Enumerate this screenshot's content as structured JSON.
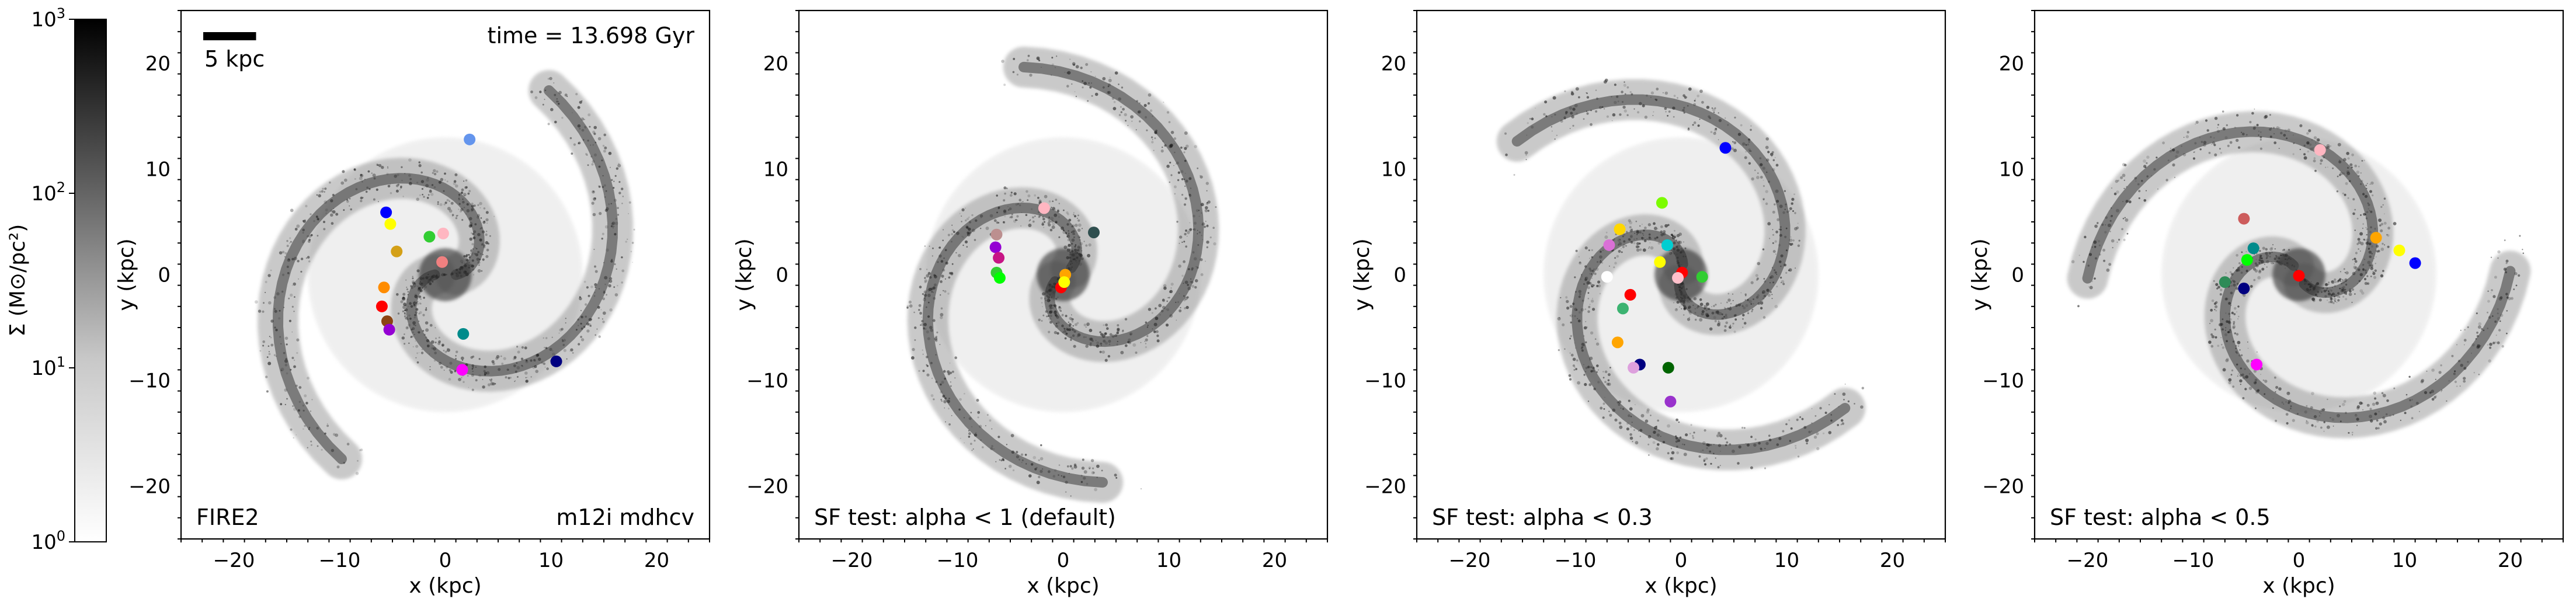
{
  "figure": {
    "colorbar": {
      "label": "Σ (M⊙/pc²)",
      "scale": "log",
      "range": [
        1,
        1000
      ],
      "ticks": [
        {
          "base": "10",
          "exp": "0"
        },
        {
          "base": "10",
          "exp": "1"
        },
        {
          "base": "10",
          "exp": "2"
        },
        {
          "base": "10",
          "exp": "3"
        }
      ],
      "colormap": [
        "#ffffff",
        "#000000"
      ]
    },
    "scale_bar_label": "5 kpc"
  },
  "chart_data": [
    {
      "type": "scatter",
      "title": "",
      "time_label": "time = 13.698 Gyr",
      "label_left": "FIRE2",
      "label_right": "m12i mdhcv",
      "xlabel": "x (kpc)",
      "ylabel": "y (kpc)",
      "xlim": [
        -25,
        25
      ],
      "ylim": [
        -25,
        25
      ],
      "xticks": [
        "−20",
        "−10",
        "0",
        "10",
        "20"
      ],
      "yticks": [
        "−20",
        "−10",
        "0",
        "10",
        "20"
      ],
      "points": [
        {
          "x": 2.3,
          "y": 12.8,
          "color": "#6495ed"
        },
        {
          "x": -5.6,
          "y": 5.9,
          "color": "#0000ff"
        },
        {
          "x": -5.2,
          "y": 4.8,
          "color": "#ffff00"
        },
        {
          "x": -4.6,
          "y": 2.2,
          "color": "#d4a017"
        },
        {
          "x": -1.5,
          "y": 3.6,
          "color": "#32cd32"
        },
        {
          "x": -0.2,
          "y": 3.9,
          "color": "#ffb6c1"
        },
        {
          "x": -0.3,
          "y": 1.2,
          "color": "#f08080"
        },
        {
          "x": -5.8,
          "y": -1.2,
          "color": "#ff8c00"
        },
        {
          "x": -6.0,
          "y": -3.0,
          "color": "#ff0000"
        },
        {
          "x": -5.5,
          "y": -4.4,
          "color": "#8b4513"
        },
        {
          "x": -5.3,
          "y": -5.2,
          "color": "#9400d3"
        },
        {
          "x": 1.7,
          "y": -5.6,
          "color": "#008b8b"
        },
        {
          "x": 1.6,
          "y": -9.0,
          "color": "#ff00ff"
        },
        {
          "x": 10.5,
          "y": -8.2,
          "color": "#000080"
        }
      ]
    },
    {
      "type": "scatter",
      "title": "",
      "label_left": "SF test: alpha < 1 (default)",
      "xlabel": "x (kpc)",
      "ylabel": "y (kpc)",
      "xlim": [
        -25,
        25
      ],
      "ylim": [
        -25,
        25
      ],
      "xticks": [
        "−20",
        "−10",
        "0",
        "10",
        "20"
      ],
      "yticks": [
        "−20",
        "−10",
        "0",
        "10",
        "20"
      ],
      "points": [
        {
          "x": -1.8,
          "y": 6.3,
          "color": "#ffb6c1"
        },
        {
          "x": 2.9,
          "y": 4.0,
          "color": "#2f4f4f"
        },
        {
          "x": -6.3,
          "y": 3.8,
          "color": "#bc8f8f"
        },
        {
          "x": -6.4,
          "y": 2.6,
          "color": "#9400d3"
        },
        {
          "x": -6.1,
          "y": 1.6,
          "color": "#c71585"
        },
        {
          "x": -6.3,
          "y": 0.2,
          "color": "#32cd32"
        },
        {
          "x": -6.0,
          "y": -0.3,
          "color": "#00ff00"
        },
        {
          "x": 0.2,
          "y": 0.0,
          "color": "#ffa500"
        },
        {
          "x": -0.2,
          "y": -1.2,
          "color": "#ff0000"
        },
        {
          "x": 0.1,
          "y": -0.7,
          "color": "#ffff00"
        }
      ]
    },
    {
      "type": "scatter",
      "title": "",
      "label_left": "SF test: alpha < 0.3",
      "xlabel": "x (kpc)",
      "ylabel": "y (kpc)",
      "xlim": [
        -25,
        25
      ],
      "ylim": [
        -25,
        25
      ],
      "xticks": [
        "−20",
        "−10",
        "0",
        "10",
        "20"
      ],
      "yticks": [
        "−20",
        "−10",
        "0",
        "10",
        "20"
      ],
      "points": [
        {
          "x": 4.2,
          "y": 12.0,
          "color": "#0000ff"
        },
        {
          "x": -1.8,
          "y": 6.8,
          "color": "#7cfc00"
        },
        {
          "x": -5.8,
          "y": 4.3,
          "color": "#ffd700"
        },
        {
          "x": -6.8,
          "y": 2.8,
          "color": "#da70d6"
        },
        {
          "x": -1.3,
          "y": 2.8,
          "color": "#00ced1"
        },
        {
          "x": -2.0,
          "y": 1.2,
          "color": "#ffff00"
        },
        {
          "x": 0.1,
          "y": 0.2,
          "color": "#ff0000"
        },
        {
          "x": -0.3,
          "y": -0.3,
          "color": "#ffc0cb"
        },
        {
          "x": 2.0,
          "y": -0.2,
          "color": "#32cd32"
        },
        {
          "x": -7.0,
          "y": -0.2,
          "color": "#ffffff"
        },
        {
          "x": -4.8,
          "y": -1.9,
          "color": "#ff0000"
        },
        {
          "x": -5.5,
          "y": -3.2,
          "color": "#3cb371"
        },
        {
          "x": -6.0,
          "y": -6.4,
          "color": "#ffa500"
        },
        {
          "x": -3.9,
          "y": -8.5,
          "color": "#000080"
        },
        {
          "x": -4.5,
          "y": -8.8,
          "color": "#dda0dd"
        },
        {
          "x": -1.2,
          "y": -8.8,
          "color": "#006400"
        },
        {
          "x": -1.0,
          "y": -12.0,
          "color": "#9932cc"
        }
      ]
    },
    {
      "type": "scatter",
      "title": "",
      "label_left": "SF test: alpha < 0.5",
      "xlabel": "x (kpc)",
      "ylabel": "y (kpc)",
      "xlim": [
        -25,
        25
      ],
      "ylim": [
        -25,
        25
      ],
      "xticks": [
        "−20",
        "−10",
        "0",
        "10",
        "20"
      ],
      "yticks": [
        "−20",
        "−10",
        "0",
        "10",
        "20"
      ],
      "points": [
        {
          "x": 2.0,
          "y": 11.8,
          "color": "#ffb6c1"
        },
        {
          "x": -5.2,
          "y": 5.3,
          "color": "#cd5c5c"
        },
        {
          "x": -4.3,
          "y": 2.5,
          "color": "#008b8b"
        },
        {
          "x": -4.9,
          "y": 1.4,
          "color": "#00ff00"
        },
        {
          "x": 7.3,
          "y": 3.5,
          "color": "#ffa500"
        },
        {
          "x": 9.5,
          "y": 2.3,
          "color": "#ffff00"
        },
        {
          "x": 11.0,
          "y": 1.1,
          "color": "#0000ff"
        },
        {
          "x": 0.0,
          "y": -0.1,
          "color": "#ff0000"
        },
        {
          "x": -7.0,
          "y": -0.7,
          "color": "#2e8b57"
        },
        {
          "x": -5.2,
          "y": -1.3,
          "color": "#000080"
        },
        {
          "x": -4.0,
          "y": -8.5,
          "color": "#ff00ff"
        }
      ]
    }
  ]
}
